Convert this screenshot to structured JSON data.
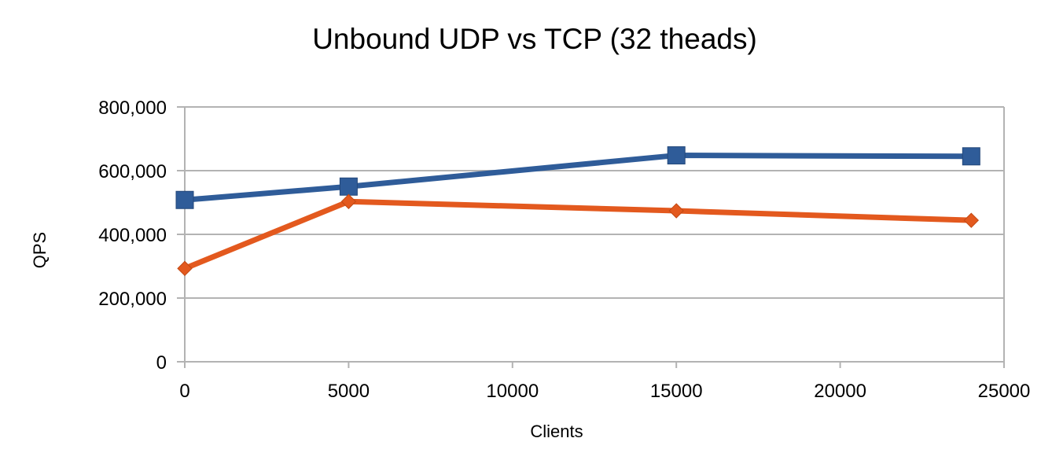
{
  "chart_data": {
    "type": "line",
    "title": "Unbound UDP vs TCP (32 theads)",
    "xlabel": "Clients",
    "ylabel": "QPS",
    "xlim": [
      0,
      25000
    ],
    "ylim": [
      0,
      800000
    ],
    "x_ticks": [
      "0",
      "5000",
      "10000",
      "15000",
      "20000",
      "25000"
    ],
    "y_ticks": [
      "0",
      "200,000",
      "400,000",
      "600,000",
      "800,000"
    ],
    "grid": "horizontal",
    "legend": "none",
    "series": [
      {
        "color": "#2f5c99",
        "marker": "square",
        "x": [
          0,
          5000,
          15000,
          24000
        ],
        "values": [
          508000,
          550000,
          648000,
          645000
        ]
      },
      {
        "color": "#e3591e",
        "marker": "diamond",
        "x": [
          0,
          5000,
          15000,
          24000
        ],
        "values": [
          293000,
          503000,
          474000,
          444000
        ]
      }
    ]
  }
}
